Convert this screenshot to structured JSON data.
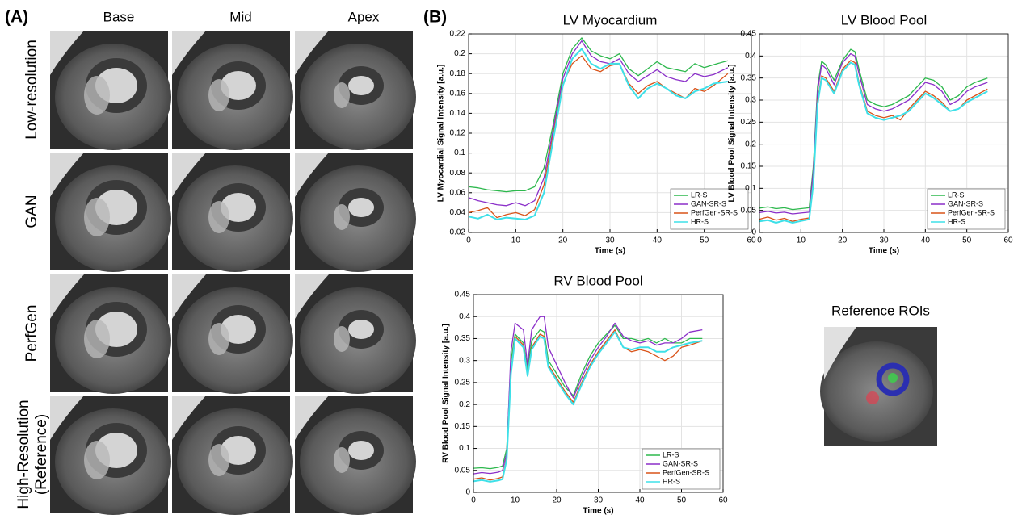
{
  "panel_a": {
    "label": "(A)",
    "columns": [
      "Base",
      "Mid",
      "Apex"
    ],
    "rows": [
      "Low-resolution",
      "GAN",
      "PerfGen",
      "High-Resolution"
    ],
    "row_note": "(Reference)"
  },
  "panel_b": {
    "label": "(B)",
    "roi_title": "Reference ROIs"
  },
  "chart_data": [
    {
      "type": "line",
      "title": "LV Myocardium",
      "xlabel": "Time (s)",
      "ylabel": "LV Myocardial Signal Intensity [a.u.]",
      "x": [
        0,
        2,
        4,
        6,
        8,
        10,
        12,
        14,
        16,
        18,
        20,
        22,
        24,
        26,
        28,
        30,
        32,
        34,
        36,
        38,
        40,
        42,
        44,
        46,
        48,
        50,
        52,
        55
      ],
      "series": [
        {
          "name": "LR-S",
          "color": "#2db84d",
          "values": [
            0.066,
            0.065,
            0.063,
            0.062,
            0.061,
            0.062,
            0.062,
            0.066,
            0.085,
            0.13,
            0.18,
            0.205,
            0.216,
            0.203,
            0.198,
            0.195,
            0.2,
            0.185,
            0.178,
            0.185,
            0.192,
            0.186,
            0.184,
            0.182,
            0.19,
            0.186,
            0.189,
            0.193
          ]
        },
        {
          "name": "GAN-SR-S",
          "color": "#8b2fc9",
          "values": [
            0.055,
            0.052,
            0.05,
            0.048,
            0.047,
            0.05,
            0.047,
            0.052,
            0.075,
            0.125,
            0.175,
            0.2,
            0.213,
            0.198,
            0.192,
            0.19,
            0.195,
            0.18,
            0.172,
            0.178,
            0.184,
            0.177,
            0.174,
            0.172,
            0.18,
            0.177,
            0.179,
            0.186
          ]
        },
        {
          "name": "PerfGen-SR-S",
          "color": "#d95319",
          "values": [
            0.04,
            0.042,
            0.045,
            0.035,
            0.038,
            0.04,
            0.037,
            0.043,
            0.068,
            0.12,
            0.17,
            0.19,
            0.198,
            0.185,
            0.182,
            0.188,
            0.19,
            0.17,
            0.16,
            0.168,
            0.172,
            0.165,
            0.16,
            0.155,
            0.165,
            0.162,
            0.168,
            0.18
          ]
        },
        {
          "name": "HR-S",
          "color": "#3ee0e8",
          "values": [
            0.036,
            0.034,
            0.038,
            0.033,
            0.035,
            0.034,
            0.033,
            0.037,
            0.06,
            0.115,
            0.168,
            0.195,
            0.205,
            0.19,
            0.185,
            0.19,
            0.19,
            0.168,
            0.155,
            0.165,
            0.17,
            0.165,
            0.158,
            0.155,
            0.162,
            0.165,
            0.17,
            0.172
          ]
        }
      ],
      "xlim": [
        0,
        60
      ],
      "xticks": [
        0,
        10,
        20,
        30,
        40,
        50,
        60
      ],
      "ylim": [
        0.02,
        0.22
      ],
      "yticks": [
        0.02,
        0.04,
        0.06,
        0.08,
        0.1,
        0.12,
        0.14,
        0.16,
        0.18,
        0.2,
        0.22
      ],
      "grid": true,
      "legend": "lower right"
    },
    {
      "type": "line",
      "title": "LV Blood Pool",
      "xlabel": "Time (s)",
      "ylabel": "LV Blood Pool Signal Intensity [a.u.]",
      "x": [
        0,
        2,
        4,
        6,
        8,
        10,
        12,
        13,
        14,
        15,
        16,
        18,
        20,
        22,
        23,
        24,
        26,
        28,
        30,
        32,
        34,
        36,
        38,
        40,
        42,
        44,
        46,
        48,
        50,
        52,
        55
      ],
      "series": [
        {
          "name": "LR-S",
          "color": "#2db84d",
          "values": [
            0.055,
            0.058,
            0.054,
            0.056,
            0.052,
            0.054,
            0.056,
            0.15,
            0.33,
            0.388,
            0.38,
            0.345,
            0.39,
            0.415,
            0.41,
            0.37,
            0.3,
            0.29,
            0.285,
            0.29,
            0.3,
            0.31,
            0.33,
            0.35,
            0.345,
            0.33,
            0.3,
            0.31,
            0.33,
            0.34,
            0.35
          ]
        },
        {
          "name": "GAN-SR-S",
          "color": "#8b2fc9",
          "values": [
            0.045,
            0.048,
            0.044,
            0.046,
            0.042,
            0.044,
            0.046,
            0.14,
            0.32,
            0.38,
            0.372,
            0.335,
            0.385,
            0.405,
            0.4,
            0.36,
            0.29,
            0.28,
            0.275,
            0.28,
            0.29,
            0.3,
            0.32,
            0.34,
            0.335,
            0.32,
            0.29,
            0.3,
            0.32,
            0.33,
            0.34
          ]
        },
        {
          "name": "PerfGen-SR-S",
          "color": "#d95319",
          "values": [
            0.03,
            0.035,
            0.028,
            0.032,
            0.025,
            0.03,
            0.033,
            0.12,
            0.3,
            0.355,
            0.35,
            0.32,
            0.37,
            0.39,
            0.385,
            0.34,
            0.275,
            0.265,
            0.26,
            0.265,
            0.255,
            0.28,
            0.3,
            0.32,
            0.31,
            0.295,
            0.275,
            0.28,
            0.3,
            0.31,
            0.325
          ]
        },
        {
          "name": "HR-S",
          "color": "#3ee0e8",
          "values": [
            0.025,
            0.028,
            0.022,
            0.027,
            0.022,
            0.026,
            0.03,
            0.11,
            0.29,
            0.35,
            0.345,
            0.315,
            0.365,
            0.385,
            0.38,
            0.335,
            0.27,
            0.26,
            0.255,
            0.26,
            0.265,
            0.275,
            0.295,
            0.315,
            0.305,
            0.29,
            0.275,
            0.28,
            0.295,
            0.305,
            0.32
          ]
        }
      ],
      "xlim": [
        0,
        60
      ],
      "xticks": [
        0,
        10,
        20,
        30,
        40,
        50,
        60
      ],
      "ylim": [
        0,
        0.45
      ],
      "yticks": [
        0,
        0.05,
        0.1,
        0.15,
        0.2,
        0.25,
        0.3,
        0.35,
        0.4,
        0.45
      ],
      "grid": true,
      "legend": "lower right"
    },
    {
      "type": "line",
      "title": "RV Blood Pool",
      "xlabel": "Time (s)",
      "ylabel": "RV Blood Pool Signal Intensity [a.u.]",
      "x": [
        0,
        2,
        4,
        6,
        7,
        8,
        9,
        10,
        12,
        13,
        14,
        16,
        17,
        18,
        20,
        22,
        24,
        26,
        28,
        30,
        32,
        34,
        36,
        38,
        40,
        42,
        44,
        46,
        48,
        50,
        52,
        55
      ],
      "series": [
        {
          "name": "LR-S",
          "color": "#2db84d",
          "values": [
            0.055,
            0.056,
            0.054,
            0.057,
            0.06,
            0.1,
            0.3,
            0.36,
            0.34,
            0.28,
            0.345,
            0.37,
            0.365,
            0.3,
            0.27,
            0.24,
            0.22,
            0.27,
            0.31,
            0.34,
            0.36,
            0.38,
            0.35,
            0.35,
            0.345,
            0.35,
            0.34,
            0.35,
            0.34,
            0.34,
            0.35,
            0.35
          ]
        },
        {
          "name": "GAN-SR-S",
          "color": "#8b2fc9",
          "values": [
            0.042,
            0.045,
            0.043,
            0.046,
            0.05,
            0.09,
            0.32,
            0.385,
            0.37,
            0.29,
            0.37,
            0.4,
            0.4,
            0.33,
            0.29,
            0.25,
            0.215,
            0.26,
            0.3,
            0.33,
            0.355,
            0.385,
            0.355,
            0.345,
            0.34,
            0.345,
            0.335,
            0.34,
            0.34,
            0.35,
            0.365,
            0.37
          ]
        },
        {
          "name": "PerfGen-SR-S",
          "color": "#d95319",
          "values": [
            0.03,
            0.033,
            0.028,
            0.032,
            0.035,
            0.08,
            0.28,
            0.355,
            0.335,
            0.27,
            0.33,
            0.36,
            0.355,
            0.29,
            0.26,
            0.23,
            0.205,
            0.25,
            0.29,
            0.32,
            0.345,
            0.37,
            0.33,
            0.32,
            0.325,
            0.32,
            0.31,
            0.3,
            0.31,
            0.33,
            0.335,
            0.345
          ]
        },
        {
          "name": "HR-S",
          "color": "#3ee0e8",
          "values": [
            0.025,
            0.028,
            0.024,
            0.027,
            0.03,
            0.075,
            0.27,
            0.35,
            0.33,
            0.265,
            0.325,
            0.355,
            0.35,
            0.285,
            0.255,
            0.225,
            0.2,
            0.245,
            0.285,
            0.315,
            0.34,
            0.365,
            0.33,
            0.325,
            0.33,
            0.33,
            0.32,
            0.32,
            0.33,
            0.335,
            0.34,
            0.345
          ]
        }
      ],
      "xlim": [
        0,
        60
      ],
      "xticks": [
        0,
        10,
        20,
        30,
        40,
        50,
        60
      ],
      "ylim": [
        0,
        0.45
      ],
      "yticks": [
        0,
        0.05,
        0.1,
        0.15,
        0.2,
        0.25,
        0.3,
        0.35,
        0.4,
        0.45
      ],
      "grid": true,
      "legend": "lower right"
    }
  ]
}
